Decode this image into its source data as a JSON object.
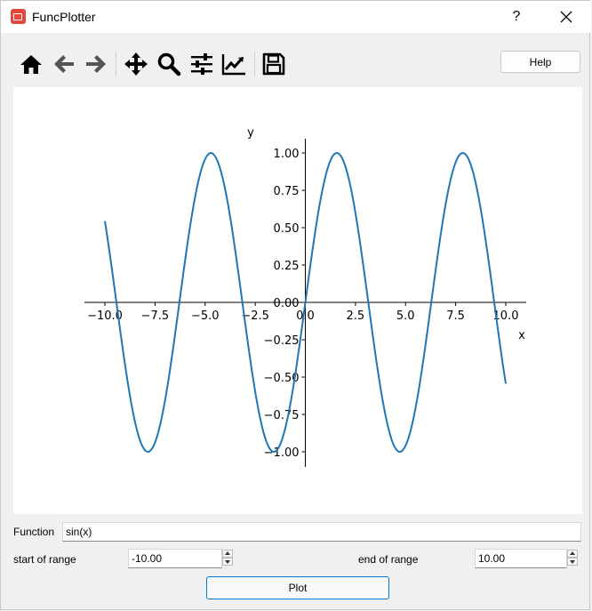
{
  "window": {
    "title": "FuncPlotter",
    "help_glyph": "?",
    "close_glyph": "✕"
  },
  "toolbar": {
    "tools": [
      "home-icon",
      "back-arrow-icon",
      "forward-arrow-icon",
      "pan-move-icon",
      "zoom-magnifier-icon",
      "configure-subplots-icon",
      "edit-axes-icon",
      "save-disk-icon"
    ],
    "help_label": "Help"
  },
  "chart_data": {
    "type": "line",
    "function": "sin(x)",
    "xlabel": "x",
    "ylabel": "y",
    "xlim": [
      -10.0,
      10.0
    ],
    "ylim": [
      -1.0,
      1.0
    ],
    "xticks": [
      "−10.0",
      "−7.5",
      "−5.0",
      "−2.5",
      "0.0",
      "2.5",
      "5.0",
      "7.5",
      "10.0"
    ],
    "xtick_values": [
      -10,
      -7.5,
      -5,
      -2.5,
      0,
      2.5,
      5,
      7.5,
      10
    ],
    "yticks": [
      "1.00",
      "0.75",
      "0.50",
      "0.25",
      "0.00",
      "−0.25",
      "−0.50",
      "−0.75",
      "−1.00"
    ],
    "ytick_values": [
      1,
      0.75,
      0.5,
      0.25,
      0,
      -0.25,
      -0.5,
      -0.75,
      -1
    ],
    "series": [
      {
        "color": "#1f77b4"
      }
    ],
    "spines": "centered at origin",
    "grid": false
  },
  "form": {
    "function_label": "Function",
    "function_value": "sin(x)",
    "start_label": "start of range",
    "start_value": "-10.00",
    "end_label": "end of range",
    "end_value": "10.00",
    "plot_label": "Plot"
  }
}
